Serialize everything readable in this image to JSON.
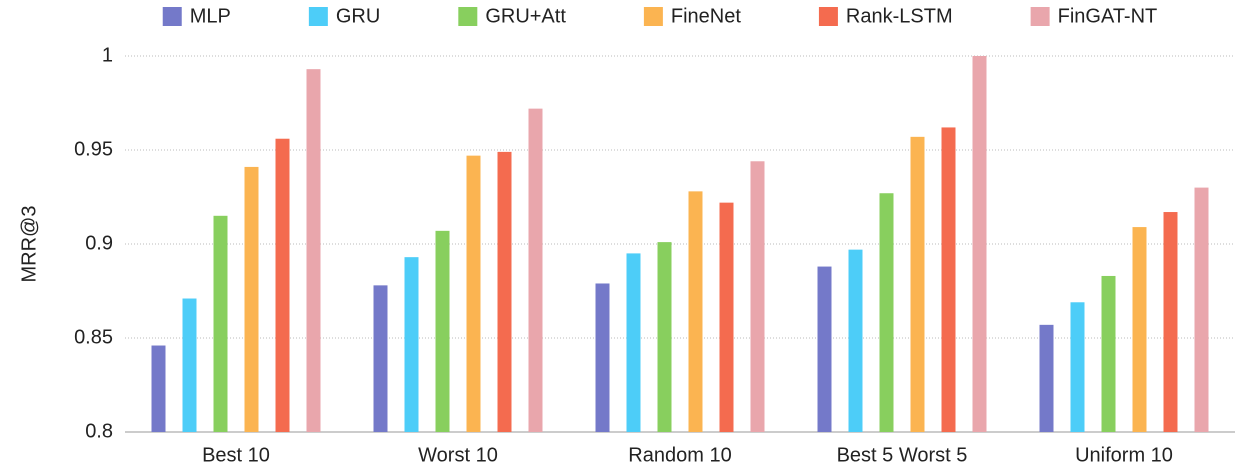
{
  "chart_data": {
    "type": "bar",
    "y_label": "MRR@3",
    "categories": [
      "Best 10",
      "Worst 10",
      "Random 10",
      "Best 5 Worst 5",
      "Uniform 10"
    ],
    "series": [
      {
        "name": "MLP",
        "color": "#7479c9",
        "values": [
          0.846,
          0.878,
          0.879,
          0.888,
          0.857
        ]
      },
      {
        "name": "GRU",
        "color": "#4dcdf8",
        "values": [
          0.871,
          0.893,
          0.895,
          0.897,
          0.869
        ]
      },
      {
        "name": "GRU+Att",
        "color": "#88cf5e",
        "values": [
          0.915,
          0.907,
          0.901,
          0.927,
          0.883
        ]
      },
      {
        "name": "FineNet",
        "color": "#fbb451",
        "values": [
          0.941,
          0.947,
          0.928,
          0.957,
          0.909
        ]
      },
      {
        "name": "Rank-LSTM",
        "color": "#f46b4f",
        "values": [
          0.956,
          0.949,
          0.922,
          0.962,
          0.917
        ]
      },
      {
        "name": "FinGAT-NT",
        "color": "#e9a6ac",
        "values": [
          0.993,
          0.972,
          0.944,
          1.0,
          0.93
        ]
      }
    ],
    "ylim": [
      0.8,
      1
    ],
    "yticks": [
      0.8,
      0.85,
      0.9,
      0.95,
      1
    ],
    "grid": true,
    "legend": "top"
  }
}
